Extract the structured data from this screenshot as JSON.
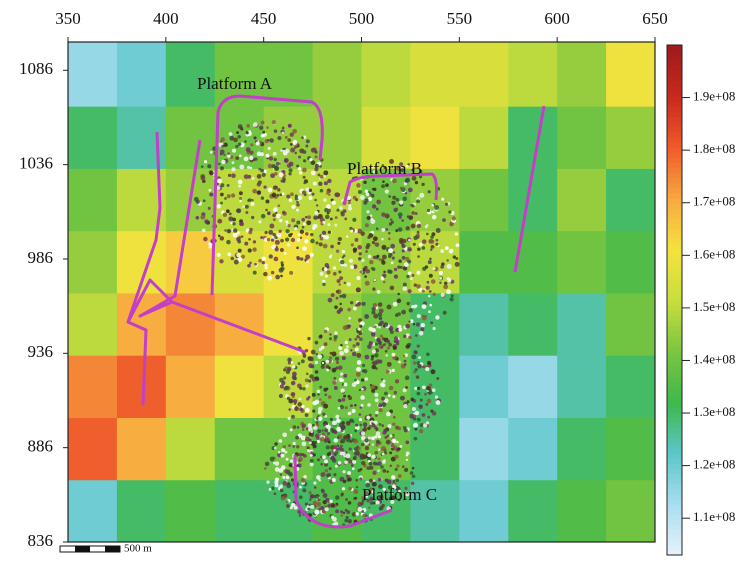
{
  "chart_data": {
    "type": "heatmap",
    "xbins": [
      350,
      375,
      400,
      425,
      450,
      475,
      500,
      525,
      550,
      575,
      600,
      625,
      650
    ],
    "ybins": [
      836,
      869,
      902,
      935,
      968,
      1001,
      1034,
      1067,
      1101
    ],
    "xlim": [
      350,
      650
    ],
    "ylim": [
      836,
      1101
    ],
    "xticks": [
      350,
      400,
      450,
      500,
      550,
      600,
      650
    ],
    "yticks": [
      836,
      886,
      936,
      986,
      1036,
      1086
    ],
    "values": [
      [
        120000000,
        130000000,
        135000000,
        130000000,
        130000000,
        135000000,
        130000000,
        125000000,
        120000000,
        130000000,
        135000000,
        140000000
      ],
      [
        180000000,
        170000000,
        150000000,
        140000000,
        140000000,
        135000000,
        140000000,
        130000000,
        115000000,
        120000000,
        130000000,
        135000000
      ],
      [
        175000000,
        180000000,
        170000000,
        160000000,
        150000000,
        140000000,
        140000000,
        130000000,
        120000000,
        115000000,
        125000000,
        130000000
      ],
      [
        150000000,
        170000000,
        175000000,
        170000000,
        160000000,
        145000000,
        140000000,
        130000000,
        125000000,
        130000000,
        125000000,
        140000000
      ],
      [
        145000000,
        160000000,
        165000000,
        155000000,
        160000000,
        150000000,
        145000000,
        150000000,
        135000000,
        135000000,
        140000000,
        135000000
      ],
      [
        140000000,
        150000000,
        145000000,
        150000000,
        150000000,
        150000000,
        140000000,
        145000000,
        140000000,
        130000000,
        145000000,
        130000000
      ],
      [
        130000000,
        125000000,
        140000000,
        140000000,
        145000000,
        145000000,
        155000000,
        160000000,
        150000000,
        130000000,
        140000000,
        145000000
      ],
      [
        115000000,
        120000000,
        130000000,
        140000000,
        140000000,
        145000000,
        150000000,
        155000000,
        155000000,
        150000000,
        145000000,
        160000000
      ]
    ],
    "colorscale": [
      "#e6f3fa",
      "#a9def0",
      "#5cc6c8",
      "#3fb84a",
      "#7cc540",
      "#c8de3c",
      "#f5e23e",
      "#f7a840",
      "#ef5a2a",
      "#c8281e",
      "#9e1a1a"
    ],
    "zlim": [
      103000000,
      200000000
    ],
    "zticks": [
      {
        "value": 110000000,
        "label": "1.1e+08"
      },
      {
        "value": 120000000,
        "label": "1.2e+08"
      },
      {
        "value": 130000000,
        "label": "1.3e+08"
      },
      {
        "value": 140000000,
        "label": "1.4e+08"
      },
      {
        "value": 150000000,
        "label": "1.5e+08"
      },
      {
        "value": 160000000,
        "label": "1.6e+08"
      },
      {
        "value": 170000000,
        "label": "1.7e+08"
      },
      {
        "value": 180000000,
        "label": "1.8e+08"
      },
      {
        "value": 190000000,
        "label": "1.9e+08"
      }
    ],
    "annotations": [
      "Platform A",
      "Platform B",
      "Platform C"
    ],
    "scale_bar_label": "500 m"
  }
}
